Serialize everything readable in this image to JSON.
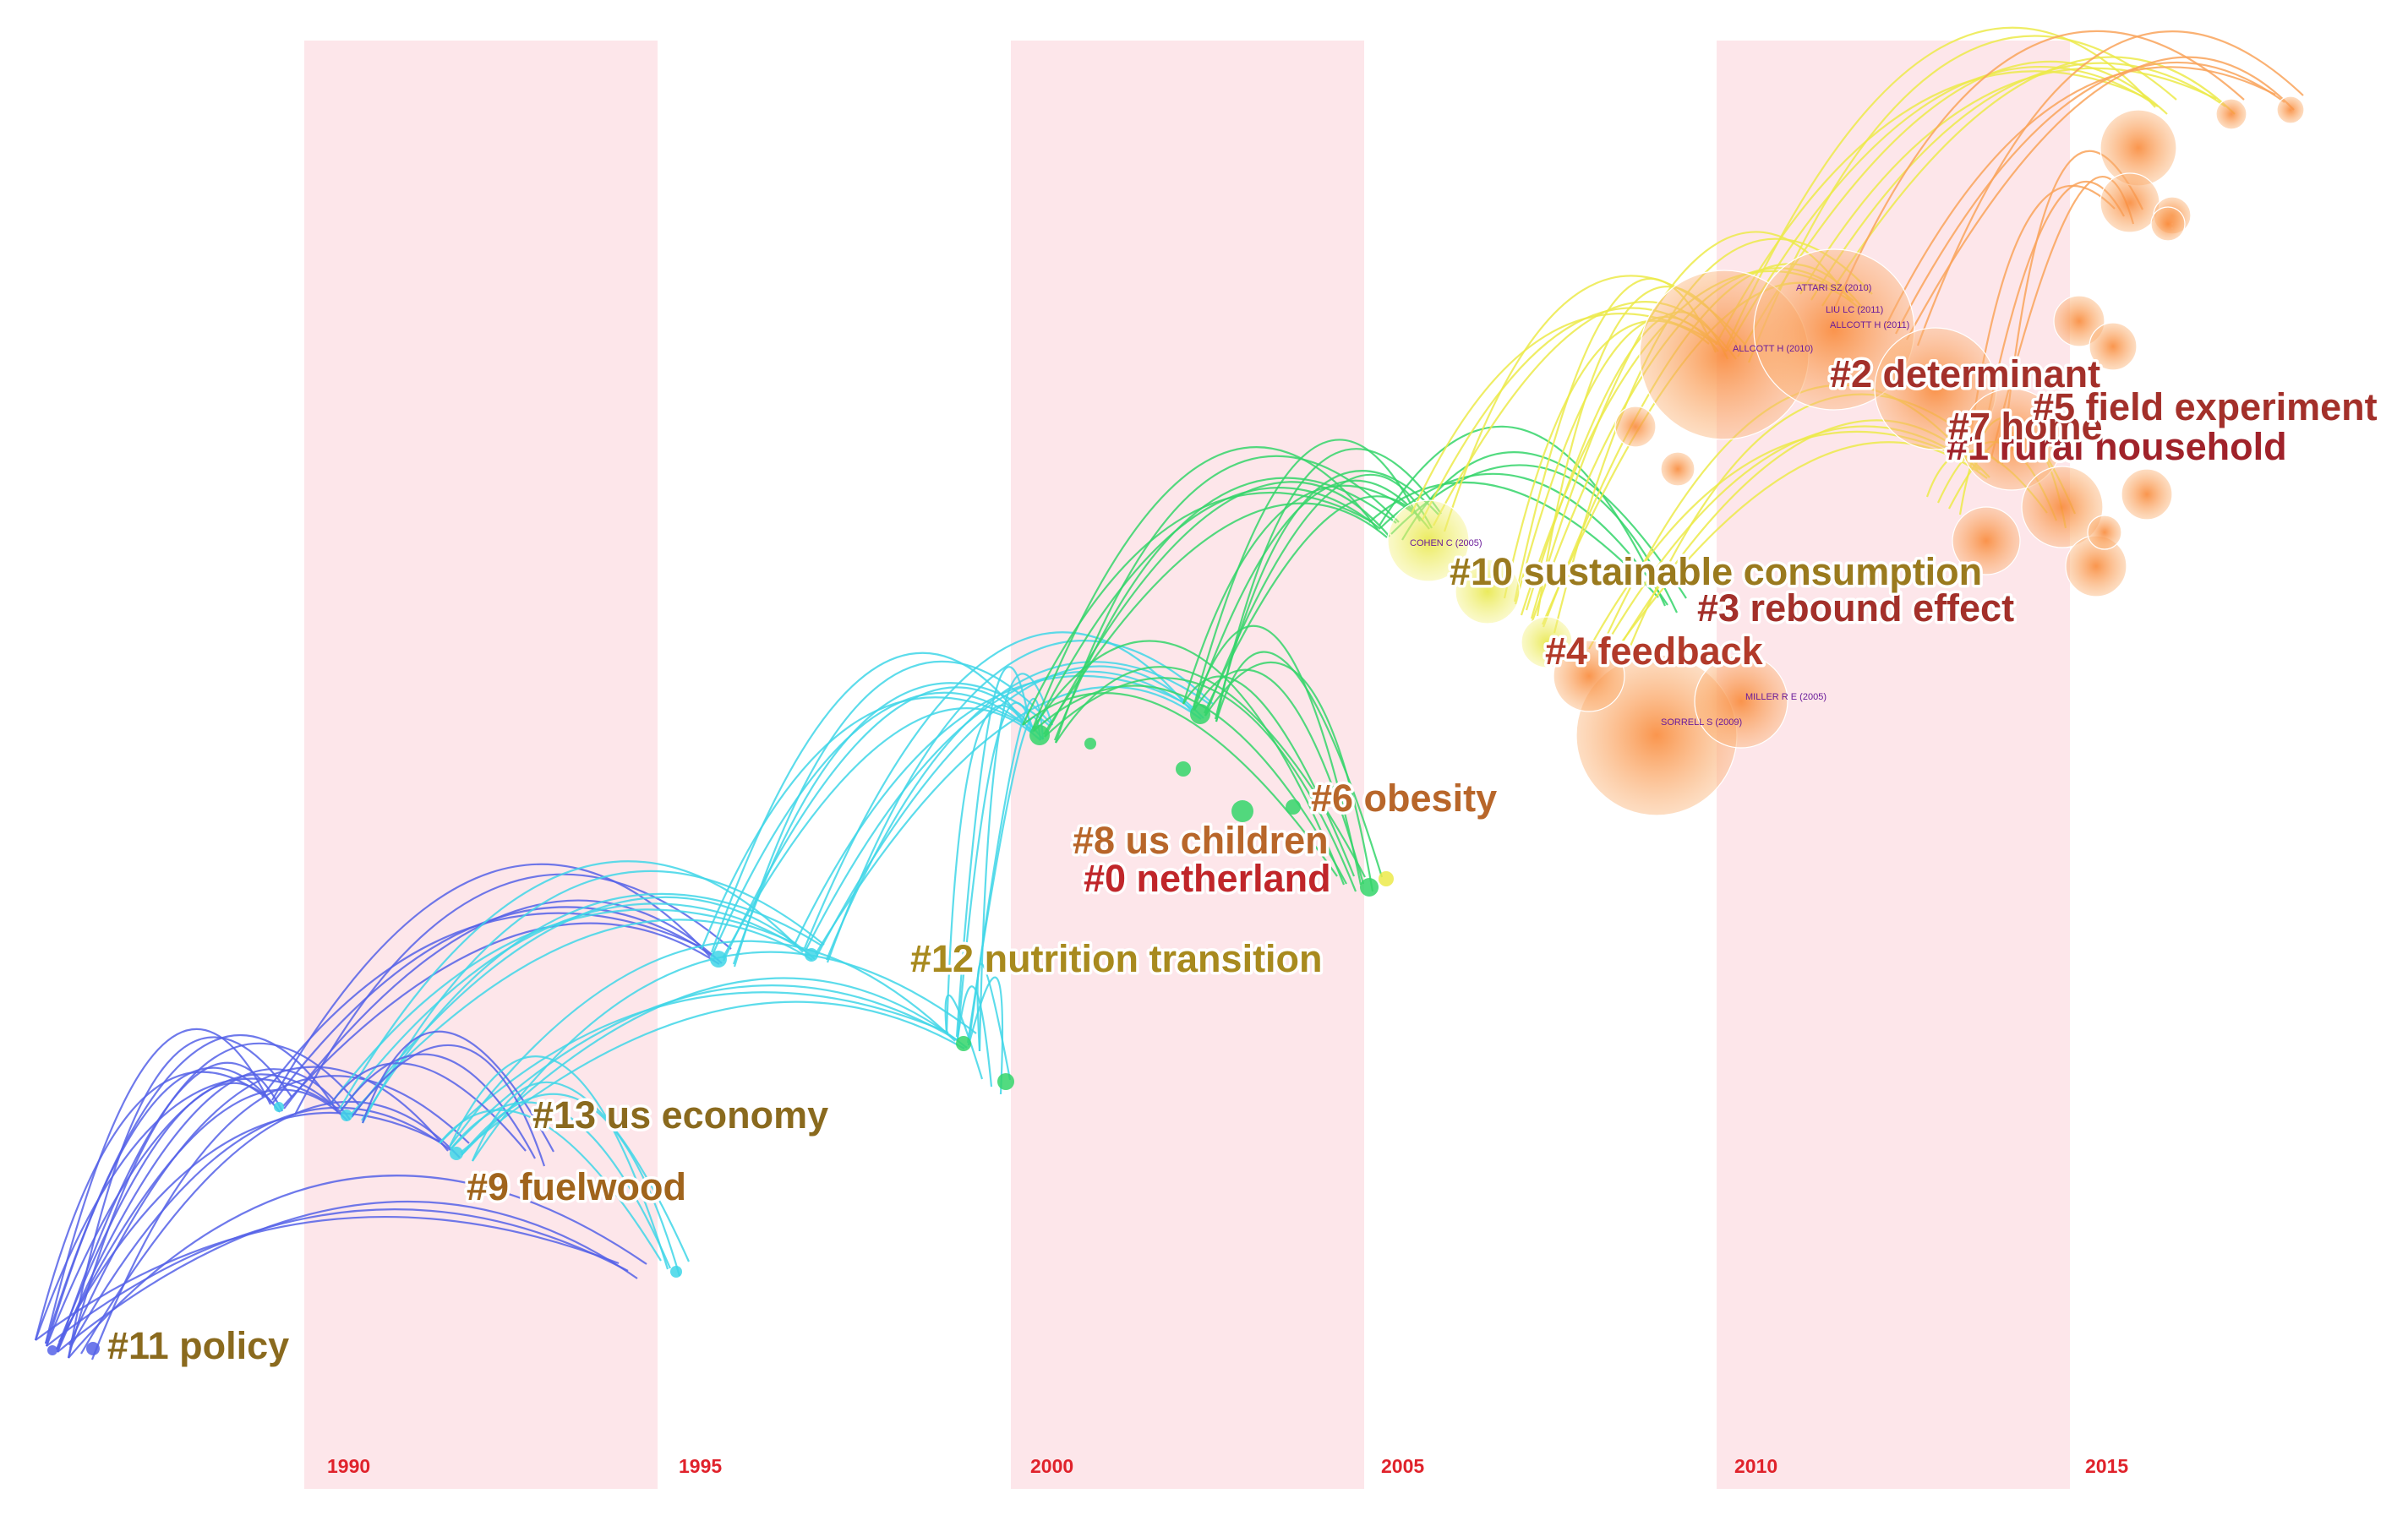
{
  "visualization": {
    "type": "timeline cluster network",
    "year_ticks": [
      "1990",
      "1995",
      "2000",
      "2005",
      "2010",
      "2015"
    ],
    "colors": {
      "band": "#fde6ea",
      "year_label": "#e0222b",
      "reference_label": "#6a1b9a",
      "link_gradient": [
        "#5561e8",
        "#3fd6e8",
        "#34d56a",
        "#ecea4a",
        "#f9a35a"
      ]
    }
  },
  "clusters": [
    {
      "id": "#11",
      "label": "#11 policy",
      "color": "#8a6a1e"
    },
    {
      "id": "#9",
      "label": "#9 fuelwood",
      "color": "#a0641c"
    },
    {
      "id": "#13",
      "label": "#13 us economy",
      "color": "#8a6a1e"
    },
    {
      "id": "#12",
      "label": "#12 nutrition transition",
      "color": "#a88a1e"
    },
    {
      "id": "#0",
      "label": "#0 netherland",
      "color": "#c0262a"
    },
    {
      "id": "#8",
      "label": "#8 us children",
      "color": "#b8662a"
    },
    {
      "id": "#6",
      "label": "#6 obesity",
      "color": "#b8662a"
    },
    {
      "id": "#4",
      "label": "#4 feedback",
      "color": "#b23a2a"
    },
    {
      "id": "#3",
      "label": "#3 rebound effect",
      "color": "#a3302a"
    },
    {
      "id": "#10",
      "label": "#10 sustainable consumption",
      "color": "#9a7a1e"
    },
    {
      "id": "#1",
      "label": "#1 rural household",
      "color": "#a0222a"
    },
    {
      "id": "#7",
      "label": "#7 home",
      "color": "#a3302a"
    },
    {
      "id": "#5",
      "label": "#5 field experiment",
      "color": "#a3302a"
    },
    {
      "id": "#2",
      "label": "#2 determinant",
      "color": "#a3302a"
    }
  ],
  "references": [
    "ATTARI SZ (2010)",
    "LIU LC (2011)",
    "ALLCOTT H (2011)",
    "ALLCOTT H (2010)",
    "COHEN C (2005)",
    "MILLER R E (2005)",
    "SORRELL S (2009)"
  ]
}
